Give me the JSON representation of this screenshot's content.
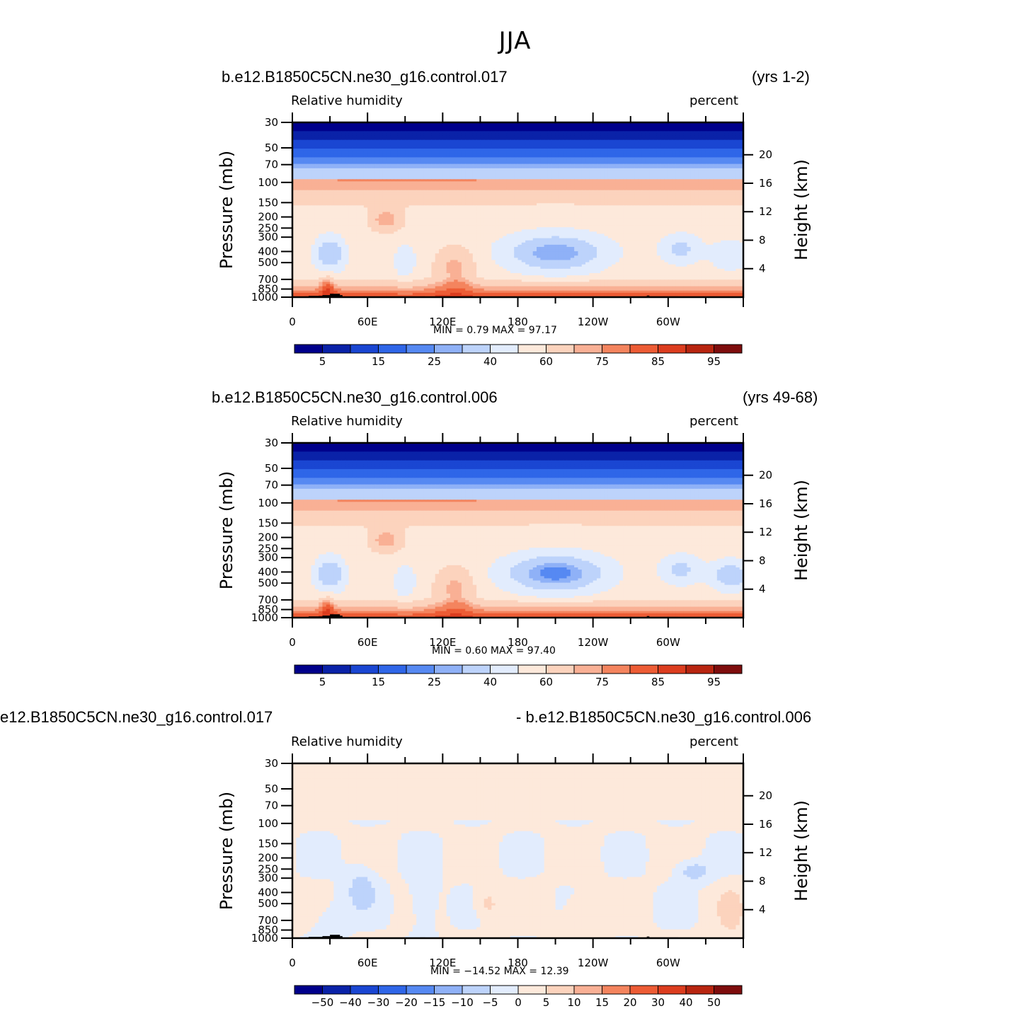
{
  "title": "JJA",
  "colors": {
    "seq_scale": [
      "#00008b",
      "#0a22a8",
      "#1a46d2",
      "#2f66e8",
      "#5689f2",
      "#8fb1f7",
      "#bdd3fb",
      "#e2ecfd",
      "#fde9db",
      "#fcd3bd",
      "#f9b095",
      "#f4845e",
      "#ed5c35",
      "#dc3d1f",
      "#b82510",
      "#7e0d0d"
    ],
    "diff_scale": [
      "#00008b",
      "#0a22a8",
      "#1a46d2",
      "#2f66e8",
      "#5689f2",
      "#8fb1f7",
      "#bdd3fb",
      "#e2ecfd",
      "#fde9db",
      "#fcd3bd",
      "#f9b095",
      "#f4845e",
      "#ed5c35",
      "#dc3d1f",
      "#b82510",
      "#7e0d0d"
    ],
    "land": "#000000"
  },
  "panels": [
    {
      "case_left": "b.e12.B1850C5CN.ne30_g16.control.017",
      "case_right": "(yrs 1-2)",
      "field_label": "Relative humidity",
      "units_label": "percent",
      "ylabel": "Pressure (mb)",
      "ylabel_right": "Height (km)",
      "stats": "MIN =    0.79   MAX =   97.17",
      "colorbar_labels": [
        "5",
        "15",
        "25",
        "40",
        "60",
        "75",
        "85",
        "95"
      ]
    },
    {
      "case_left": "b.e12.B1850C5CN.ne30_g16.control.006",
      "case_right": "(yrs 49-68)",
      "field_label": "Relative humidity",
      "units_label": "percent",
      "ylabel": "Pressure (mb)",
      "ylabel_right": "Height (km)",
      "stats": "MIN =    0.60   MAX =   97.40",
      "colorbar_labels": [
        "5",
        "15",
        "25",
        "40",
        "60",
        "75",
        "85",
        "95"
      ]
    },
    {
      "case_left": "e12.B1850C5CN.ne30_g16.control.017",
      "case_right": "- b.e12.B1850C5CN.ne30_g16.control.006",
      "field_label": "Relative humidity",
      "units_label": "percent",
      "ylabel": "Pressure (mb)",
      "ylabel_right": "Height (km)",
      "stats": "MIN = −14.52   MAX =   12.39",
      "colorbar_labels": [
        "−50",
        "−40",
        "−30",
        "−20",
        "−15",
        "−10",
        "−5",
        "0",
        "5",
        "10",
        "15",
        "20",
        "30",
        "40",
        "50"
      ]
    }
  ],
  "chart_data": [
    {
      "type": "heatmap",
      "title": "Relative humidity",
      "x_ticks": [
        "0",
        "60E",
        "120E",
        "180",
        "120W",
        "60W"
      ],
      "y_ticks": [
        "30",
        "50",
        "70",
        "100",
        "150",
        "200",
        "250",
        "300",
        "400",
        "500",
        "700",
        "850",
        "1000"
      ],
      "y_ticks_right": [
        "20",
        "16",
        "12",
        "8",
        "4"
      ],
      "ylim": [
        1000,
        30
      ],
      "levels": [
        5,
        10,
        15,
        20,
        25,
        30,
        40,
        50,
        60,
        70,
        75,
        80,
        85,
        90,
        95
      ],
      "min": 0.79,
      "max": 97.17
    },
    {
      "type": "heatmap",
      "title": "Relative humidity",
      "x_ticks": [
        "0",
        "60E",
        "120E",
        "180",
        "120W",
        "60W"
      ],
      "y_ticks": [
        "30",
        "50",
        "70",
        "100",
        "150",
        "200",
        "250",
        "300",
        "400",
        "500",
        "700",
        "850",
        "1000"
      ],
      "y_ticks_right": [
        "20",
        "16",
        "12",
        "8",
        "4"
      ],
      "ylim": [
        1000,
        30
      ],
      "levels": [
        5,
        10,
        15,
        20,
        25,
        30,
        40,
        50,
        60,
        70,
        75,
        80,
        85,
        90,
        95
      ],
      "min": 0.6,
      "max": 97.4
    },
    {
      "type": "heatmap",
      "title": "Relative humidity",
      "x_ticks": [
        "0",
        "60E",
        "120E",
        "180",
        "120W",
        "60W"
      ],
      "y_ticks": [
        "30",
        "50",
        "70",
        "100",
        "150",
        "200",
        "250",
        "300",
        "400",
        "500",
        "700",
        "850",
        "1000"
      ],
      "y_ticks_right": [
        "20",
        "16",
        "12",
        "8",
        "4"
      ],
      "ylim": [
        1000,
        30
      ],
      "levels": [
        -50,
        -40,
        -30,
        -20,
        -15,
        -10,
        -5,
        0,
        5,
        10,
        15,
        20,
        30,
        40,
        50
      ],
      "min": -14.52,
      "max": 12.39
    }
  ]
}
